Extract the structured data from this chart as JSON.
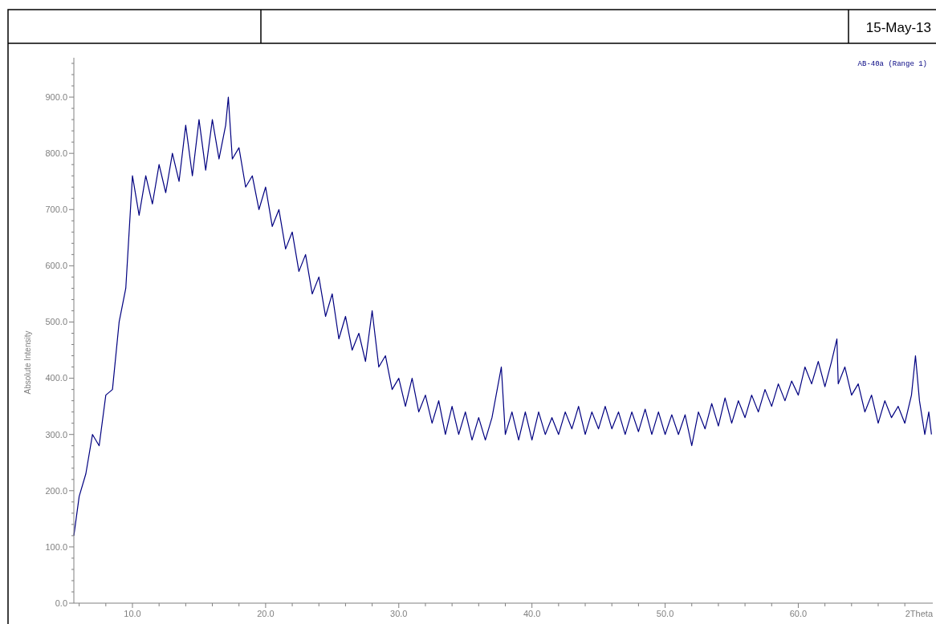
{
  "chart_data": {
    "type": "line",
    "subtitle": "15-May-13",
    "xlabel": "2Theta",
    "ylabel": "Absolute Intensity",
    "annotations": [
      "AB-40a (Range 1)"
    ],
    "xlim": [
      5.6,
      70.1
    ],
    "xticks": [
      {
        "value": 6,
        "label": null
      },
      {
        "value": 8,
        "label": null
      },
      {
        "value": 10,
        "label": "10.0"
      },
      {
        "value": 12,
        "label": null
      },
      {
        "value": 14,
        "label": null
      },
      {
        "value": 16,
        "label": null
      },
      {
        "value": 18,
        "label": null
      },
      {
        "value": 20,
        "label": "20.0"
      },
      {
        "value": 22,
        "label": null
      },
      {
        "value": 24,
        "label": null
      },
      {
        "value": 26,
        "label": null
      },
      {
        "value": 28,
        "label": null
      },
      {
        "value": 30,
        "label": "30.0"
      },
      {
        "value": 32,
        "label": null
      },
      {
        "value": 34,
        "label": null
      },
      {
        "value": 36,
        "label": null
      },
      {
        "value": 38,
        "label": null
      },
      {
        "value": 40,
        "label": "40.0"
      },
      {
        "value": 42,
        "label": null
      },
      {
        "value": 44,
        "label": null
      },
      {
        "value": 46,
        "label": null
      },
      {
        "value": 48,
        "label": null
      },
      {
        "value": 50,
        "label": "50.0"
      },
      {
        "value": 52,
        "label": null
      },
      {
        "value": 54,
        "label": null
      },
      {
        "value": 56,
        "label": null
      },
      {
        "value": 58,
        "label": null
      },
      {
        "value": 60,
        "label": "60.0"
      },
      {
        "value": 62,
        "label": null
      },
      {
        "value": 64,
        "label": null
      },
      {
        "value": 66,
        "label": null
      },
      {
        "value": 68,
        "label": null
      }
    ],
    "ylim": [
      0,
      970
    ],
    "yticks": [
      {
        "value": 0,
        "label": "0.0"
      },
      {
        "value": 20,
        "label": null
      },
      {
        "value": 40,
        "label": null
      },
      {
        "value": 60,
        "label": null
      },
      {
        "value": 80,
        "label": null
      },
      {
        "value": 100,
        "label": "100.0"
      },
      {
        "value": 120,
        "label": null
      },
      {
        "value": 140,
        "label": null
      },
      {
        "value": 160,
        "label": null
      },
      {
        "value": 180,
        "label": null
      },
      {
        "value": 200,
        "label": "200.0"
      },
      {
        "value": 220,
        "label": null
      },
      {
        "value": 240,
        "label": null
      },
      {
        "value": 260,
        "label": null
      },
      {
        "value": 280,
        "label": null
      },
      {
        "value": 300,
        "label": "300.0"
      },
      {
        "value": 320,
        "label": null
      },
      {
        "value": 340,
        "label": null
      },
      {
        "value": 360,
        "label": null
      },
      {
        "value": 380,
        "label": null
      },
      {
        "value": 400,
        "label": "400.0"
      },
      {
        "value": 420,
        "label": null
      },
      {
        "value": 440,
        "label": null
      },
      {
        "value": 460,
        "label": null
      },
      {
        "value": 480,
        "label": null
      },
      {
        "value": 500,
        "label": "500.0"
      },
      {
        "value": 520,
        "label": null
      },
      {
        "value": 540,
        "label": null
      },
      {
        "value": 560,
        "label": null
      },
      {
        "value": 580,
        "label": null
      },
      {
        "value": 600,
        "label": "600.0"
      },
      {
        "value": 620,
        "label": null
      },
      {
        "value": 640,
        "label": null
      },
      {
        "value": 660,
        "label": null
      },
      {
        "value": 680,
        "label": null
      },
      {
        "value": 700,
        "label": "700.0"
      },
      {
        "value": 720,
        "label": null
      },
      {
        "value": 740,
        "label": null
      },
      {
        "value": 760,
        "label": null
      },
      {
        "value": 780,
        "label": null
      },
      {
        "value": 800,
        "label": "800.0"
      },
      {
        "value": 820,
        "label": null
      },
      {
        "value": 840,
        "label": null
      },
      {
        "value": 860,
        "label": null
      },
      {
        "value": 880,
        "label": null
      },
      {
        "value": 900,
        "label": "900.0"
      },
      {
        "value": 920,
        "label": null
      },
      {
        "value": 940,
        "label": null
      },
      {
        "value": 960,
        "label": null
      }
    ],
    "series": [
      {
        "color": "#000080",
        "x": [
          5.6,
          6,
          6.5,
          7,
          7.5,
          8,
          8.5,
          9,
          9.5,
          10,
          10.5,
          11,
          11.5,
          12,
          12.5,
          13,
          13.5,
          14,
          14.5,
          15,
          15.5,
          16,
          16.5,
          17,
          17.2,
          17.5,
          18,
          18.5,
          19,
          19.5,
          20,
          20.5,
          21,
          21.5,
          22,
          22.5,
          23,
          23.5,
          24,
          24.5,
          25,
          25.5,
          26,
          26.5,
          27,
          27.5,
          28,
          28.5,
          29,
          29.5,
          30,
          30.5,
          31,
          31.5,
          32,
          32.5,
          33,
          33.5,
          34,
          34.5,
          35,
          35.5,
          36,
          36.5,
          37,
          37.7,
          38,
          38.5,
          39,
          39.5,
          40,
          40.5,
          41,
          41.5,
          42,
          42.5,
          43,
          43.5,
          44,
          44.5,
          45,
          45.5,
          46,
          46.5,
          47,
          47.5,
          48,
          48.5,
          49,
          49.5,
          50,
          50.5,
          51,
          51.5,
          52,
          52.5,
          53,
          53.5,
          54,
          54.5,
          55,
          55.5,
          56,
          56.5,
          57,
          57.5,
          58,
          58.5,
          59,
          59.5,
          60,
          60.5,
          61,
          61.5,
          62,
          62.5,
          62.9,
          63,
          63.5,
          64,
          64.5,
          65,
          65.5,
          66,
          66.5,
          67,
          67.5,
          68,
          68.5,
          68.8,
          69.1,
          69.5,
          69.8,
          70
        ],
        "values": [
          120,
          190,
          230,
          300,
          280,
          370,
          380,
          500,
          560,
          760,
          690,
          760,
          710,
          780,
          730,
          800,
          750,
          850,
          760,
          860,
          770,
          860,
          790,
          850,
          900,
          790,
          810,
          740,
          760,
          700,
          740,
          670,
          700,
          630,
          660,
          590,
          620,
          550,
          580,
          510,
          550,
          470,
          510,
          450,
          480,
          430,
          520,
          420,
          440,
          380,
          400,
          350,
          400,
          340,
          370,
          320,
          360,
          300,
          350,
          300,
          340,
          290,
          330,
          290,
          330,
          420,
          300,
          340,
          290,
          340,
          290,
          340,
          300,
          330,
          300,
          340,
          310,
          350,
          300,
          340,
          310,
          350,
          310,
          340,
          300,
          340,
          305,
          345,
          300,
          340,
          300,
          335,
          300,
          335,
          280,
          340,
          310,
          355,
          315,
          365,
          320,
          360,
          330,
          370,
          340,
          380,
          350,
          390,
          360,
          395,
          370,
          420,
          390,
          430,
          385,
          430,
          470,
          390,
          420,
          370,
          390,
          340,
          370,
          320,
          360,
          330,
          350,
          320,
          370,
          440,
          360,
          300,
          340,
          300
        ]
      }
    ]
  }
}
